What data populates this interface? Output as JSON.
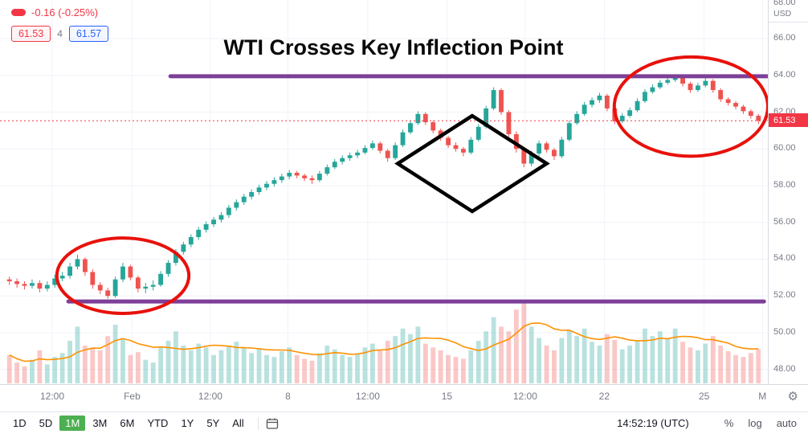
{
  "header": {
    "change_text": "-0.16 (-0.25%)",
    "bid": "61.53",
    "spread": "4",
    "ask": "61.57"
  },
  "price_axis": {
    "top_label": "68.00",
    "currency": "USD",
    "last_price": "61.53"
  },
  "toolbar": {
    "ranges": [
      "1D",
      "5D",
      "1M",
      "3M",
      "6M",
      "YTD",
      "1Y",
      "5Y",
      "All"
    ],
    "active_range": "1M",
    "clock": "14:52:19 (UTC)",
    "percent_label": "%",
    "log_label": "log",
    "auto_label": "auto"
  },
  "chart_data": {
    "type": "candlestick",
    "title": "WTI Crosses Key Inflection Point",
    "ylim": [
      47.2,
      68.1
    ],
    "grid_prices": [
      66,
      64,
      62,
      60,
      58,
      56,
      54,
      52,
      50,
      48
    ],
    "x_labels": [
      {
        "text": "12:00",
        "pos": 0.068
      },
      {
        "text": "Feb",
        "pos": 0.172
      },
      {
        "text": "12:00",
        "pos": 0.274
      },
      {
        "text": "8",
        "pos": 0.375
      },
      {
        "text": "12:00",
        "pos": 0.479
      },
      {
        "text": "15",
        "pos": 0.582
      },
      {
        "text": "12:00",
        "pos": 0.684
      },
      {
        "text": "22",
        "pos": 0.787
      },
      {
        "text": "25",
        "pos": 0.917
      },
      {
        "text": "M",
        "pos": 0.993
      }
    ],
    "last_price": 61.53,
    "candles": [
      [
        52.9,
        53.05,
        52.6,
        52.8
      ],
      [
        52.8,
        52.95,
        52.45,
        52.65
      ],
      [
        52.65,
        52.8,
        52.35,
        52.55
      ],
      [
        52.55,
        52.9,
        52.4,
        52.7
      ],
      [
        52.7,
        52.85,
        52.2,
        52.4
      ],
      [
        52.4,
        52.8,
        52.25,
        52.6
      ],
      [
        52.6,
        53.15,
        52.45,
        52.95
      ],
      [
        52.95,
        53.3,
        52.8,
        53.1
      ],
      [
        53.1,
        53.8,
        52.95,
        53.6
      ],
      [
        53.6,
        54.25,
        53.45,
        54.0
      ],
      [
        54.0,
        54.1,
        53.1,
        53.3
      ],
      [
        53.3,
        53.45,
        52.4,
        52.6
      ],
      [
        52.6,
        52.75,
        52.1,
        52.3
      ],
      [
        52.3,
        52.45,
        51.85,
        52.0
      ],
      [
        52.0,
        53.05,
        51.9,
        52.9
      ],
      [
        52.9,
        53.8,
        52.75,
        53.6
      ],
      [
        53.6,
        53.7,
        52.85,
        53.0
      ],
      [
        53.0,
        53.1,
        52.2,
        52.4
      ],
      [
        52.4,
        52.7,
        52.15,
        52.5
      ],
      [
        52.5,
        52.85,
        52.3,
        52.6
      ],
      [
        52.6,
        53.35,
        52.5,
        53.2
      ],
      [
        53.2,
        53.95,
        53.05,
        53.8
      ],
      [
        53.8,
        54.55,
        53.65,
        54.4
      ],
      [
        54.4,
        54.95,
        54.25,
        54.8
      ],
      [
        54.8,
        55.35,
        54.65,
        55.2
      ],
      [
        55.2,
        55.75,
        55.05,
        55.6
      ],
      [
        55.6,
        56.05,
        55.45,
        55.9
      ],
      [
        55.9,
        56.3,
        55.75,
        56.15
      ],
      [
        56.15,
        56.55,
        56.0,
        56.4
      ],
      [
        56.4,
        56.95,
        56.25,
        56.8
      ],
      [
        56.8,
        57.25,
        56.65,
        57.1
      ],
      [
        57.1,
        57.55,
        56.95,
        57.4
      ],
      [
        57.4,
        57.8,
        57.25,
        57.65
      ],
      [
        57.65,
        58.05,
        57.5,
        57.9
      ],
      [
        57.9,
        58.25,
        57.75,
        58.1
      ],
      [
        58.1,
        58.45,
        57.95,
        58.3
      ],
      [
        58.3,
        58.65,
        58.15,
        58.5
      ],
      [
        58.5,
        58.85,
        58.35,
        58.7
      ],
      [
        58.7,
        58.8,
        58.4,
        58.55
      ],
      [
        58.55,
        58.65,
        58.25,
        58.4
      ],
      [
        58.4,
        58.55,
        58.1,
        58.3
      ],
      [
        58.3,
        58.8,
        58.2,
        58.65
      ],
      [
        58.65,
        59.15,
        58.55,
        59.0
      ],
      [
        59.0,
        59.45,
        58.9,
        59.3
      ],
      [
        59.3,
        59.65,
        59.15,
        59.5
      ],
      [
        59.5,
        59.8,
        59.35,
        59.65
      ],
      [
        59.65,
        59.95,
        59.5,
        59.8
      ],
      [
        59.8,
        60.2,
        59.7,
        60.05
      ],
      [
        60.05,
        60.45,
        59.95,
        60.3
      ],
      [
        60.3,
        60.4,
        59.75,
        59.9
      ],
      [
        59.9,
        60.0,
        59.3,
        59.5
      ],
      [
        59.5,
        60.35,
        59.4,
        60.2
      ],
      [
        60.2,
        61.05,
        60.1,
        60.9
      ],
      [
        60.9,
        61.55,
        60.8,
        61.4
      ],
      [
        61.4,
        62.05,
        61.3,
        61.9
      ],
      [
        61.9,
        62.0,
        61.3,
        61.45
      ],
      [
        61.45,
        61.55,
        60.85,
        61.0
      ],
      [
        61.0,
        61.1,
        60.45,
        60.6
      ],
      [
        60.6,
        60.7,
        60.05,
        60.2
      ],
      [
        60.2,
        60.35,
        59.85,
        60.0
      ],
      [
        60.0,
        60.1,
        59.6,
        59.8
      ],
      [
        59.8,
        60.65,
        59.7,
        60.5
      ],
      [
        60.5,
        61.35,
        60.4,
        61.2
      ],
      [
        61.2,
        62.35,
        61.1,
        62.2
      ],
      [
        62.2,
        63.35,
        62.1,
        63.2
      ],
      [
        63.2,
        63.3,
        61.85,
        62.0
      ],
      [
        62.0,
        62.1,
        60.65,
        60.8
      ],
      [
        60.8,
        60.95,
        59.8,
        60.0
      ],
      [
        60.0,
        60.1,
        59.0,
        59.2
      ],
      [
        59.2,
        59.9,
        59.05,
        59.75
      ],
      [
        59.75,
        60.45,
        59.6,
        60.3
      ],
      [
        60.3,
        60.4,
        59.8,
        59.95
      ],
      [
        59.95,
        60.05,
        59.4,
        59.6
      ],
      [
        59.6,
        60.65,
        59.5,
        60.5
      ],
      [
        60.5,
        61.55,
        60.4,
        61.4
      ],
      [
        61.4,
        62.05,
        61.3,
        61.9
      ],
      [
        61.9,
        62.55,
        61.8,
        62.4
      ],
      [
        62.4,
        62.8,
        62.25,
        62.65
      ],
      [
        62.65,
        63.05,
        62.5,
        62.9
      ],
      [
        62.9,
        63.0,
        62.05,
        62.2
      ],
      [
        62.2,
        62.3,
        61.35,
        61.5
      ],
      [
        61.5,
        61.95,
        61.4,
        61.8
      ],
      [
        61.8,
        62.25,
        61.7,
        62.1
      ],
      [
        62.1,
        62.75,
        62.0,
        62.6
      ],
      [
        62.6,
        63.25,
        62.5,
        63.1
      ],
      [
        63.1,
        63.5,
        63.0,
        63.35
      ],
      [
        63.35,
        63.75,
        63.25,
        63.6
      ],
      [
        63.6,
        63.9,
        63.5,
        63.75
      ],
      [
        63.75,
        64.05,
        63.65,
        63.9
      ],
      [
        63.9,
        64.0,
        63.4,
        63.55
      ],
      [
        63.55,
        63.65,
        63.05,
        63.2
      ],
      [
        63.2,
        63.6,
        63.1,
        63.45
      ],
      [
        63.45,
        63.85,
        63.35,
        63.7
      ],
      [
        63.7,
        63.8,
        63.05,
        63.2
      ],
      [
        63.2,
        63.3,
        62.55,
        62.7
      ],
      [
        62.7,
        62.8,
        62.35,
        62.5
      ],
      [
        62.5,
        62.6,
        62.15,
        62.3
      ],
      [
        62.3,
        62.4,
        61.9,
        62.05
      ],
      [
        62.05,
        62.15,
        61.65,
        61.8
      ],
      [
        61.8,
        61.9,
        61.35,
        61.53
      ]
    ],
    "volume": [
      30,
      22,
      18,
      25,
      35,
      20,
      28,
      32,
      45,
      60,
      40,
      38,
      35,
      50,
      62,
      48,
      30,
      33,
      25,
      22,
      38,
      45,
      55,
      40,
      35,
      42,
      38,
      30,
      35,
      40,
      44,
      38,
      32,
      36,
      30,
      28,
      34,
      38,
      30,
      26,
      24,
      32,
      40,
      36,
      30,
      28,
      32,
      38,
      42,
      36,
      45,
      50,
      58,
      52,
      60,
      42,
      38,
      35,
      30,
      28,
      26,
      35,
      45,
      55,
      70,
      60,
      55,
      78,
      85,
      60,
      48,
      40,
      35,
      48,
      56,
      50,
      58,
      44,
      40,
      52,
      46,
      36,
      40,
      45,
      58,
      50,
      55,
      48,
      58,
      44,
      38,
      35,
      42,
      50,
      40,
      34,
      30,
      28,
      32,
      36
    ],
    "volume_ma_window": 8,
    "levels": [
      {
        "name": "upper-inflection-line",
        "price": 63.95,
        "x_from": 0.222,
        "x_to": 1.0
      },
      {
        "name": "lower-inflection-line",
        "price": 51.7,
        "x_from": 0.089,
        "x_to": 0.995
      }
    ],
    "shapes": {
      "ellipses": [
        {
          "name": "lower-left-highlight",
          "cx": 0.16,
          "cy_price": 53.1,
          "rx": 0.086,
          "ry_price": 2.05
        },
        {
          "name": "upper-right-highlight",
          "cx": 0.9,
          "cy_price": 62.3,
          "rx": 0.1,
          "ry_price": 2.7
        }
      ],
      "diamond": {
        "name": "mid-consolidation-highlight",
        "cx": 0.615,
        "cy_price": 59.2,
        "half_w": 0.097,
        "half_h_price": 2.6
      }
    },
    "colors": {
      "up": "#26a69a",
      "down": "#ef5350",
      "volume_up": "rgba(38,166,154,0.32)",
      "volume_down": "rgba(239,83,80,0.32)",
      "volume_ma": "#ff9100",
      "grid": "#f0f3fa",
      "level": "#7d3f98",
      "ellipse": "#e8110b",
      "diamond": "#000000",
      "last_price_line": "#f23645"
    }
  }
}
